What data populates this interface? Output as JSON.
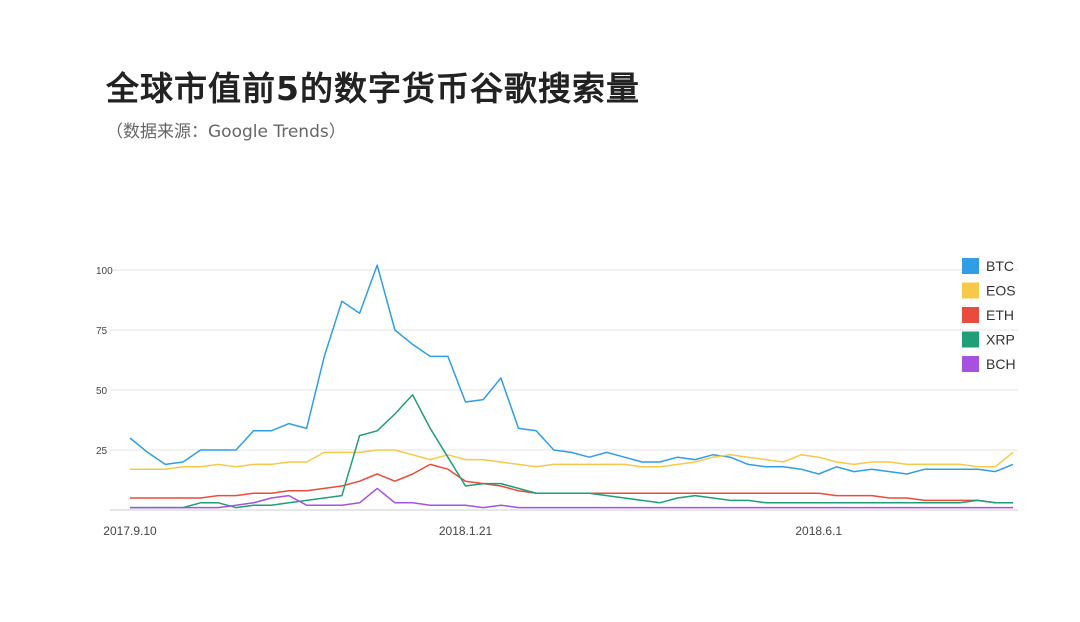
{
  "header": {
    "title": "全球市值前5的数字货币谷歌搜索量",
    "subtitle": "（数据来源：Google Trends）"
  },
  "chart_data": {
    "type": "line",
    "title": "全球市值前5的数字货币谷歌搜索量",
    "subtitle": "（数据来源：Google Trends）",
    "xlabel": "",
    "ylabel": "",
    "ylim": [
      0,
      100
    ],
    "yticks": [
      25,
      50,
      75,
      100
    ],
    "grid": true,
    "legend_position": "right",
    "x_tick_labels": [
      {
        "index": 0,
        "label": "2017.9.10"
      },
      {
        "index": 19,
        "label": "2018.1.21"
      },
      {
        "index": 39,
        "label": "2018.6.1"
      }
    ],
    "x_count": 51,
    "series": [
      {
        "name": "BTC",
        "color": "#2f9ee6",
        "values": [
          30,
          24,
          19,
          20,
          25,
          25,
          25,
          33,
          33,
          36,
          34,
          64,
          87,
          82,
          102,
          75,
          69,
          64,
          64,
          45,
          46,
          55,
          34,
          33,
          25,
          24,
          22,
          24,
          22,
          20,
          20,
          22,
          21,
          23,
          22,
          19,
          18,
          18,
          17,
          15,
          18,
          16,
          17,
          16,
          15,
          17,
          17,
          17,
          17,
          16,
          19
        ]
      },
      {
        "name": "EOS",
        "color": "#f7c948",
        "values": [
          17,
          17,
          17,
          18,
          18,
          19,
          18,
          19,
          19,
          20,
          20,
          24,
          24,
          24,
          25,
          25,
          23,
          21,
          23,
          21,
          21,
          20,
          19,
          18,
          19,
          19,
          19,
          19,
          19,
          18,
          18,
          19,
          20,
          22,
          23,
          22,
          21,
          20,
          23,
          22,
          20,
          19,
          20,
          20,
          19,
          19,
          19,
          19,
          18,
          18,
          24
        ]
      },
      {
        "name": "ETH",
        "color": "#e94b3c",
        "values": [
          5,
          5,
          5,
          5,
          5,
          6,
          6,
          7,
          7,
          8,
          8,
          9,
          10,
          12,
          15,
          12,
          15,
          19,
          17,
          12,
          11,
          10,
          8,
          7,
          7,
          7,
          7,
          7,
          7,
          7,
          7,
          7,
          7,
          7,
          7,
          7,
          7,
          7,
          7,
          7,
          6,
          6,
          6,
          5,
          5,
          4,
          4,
          4,
          4,
          3,
          3
        ]
      },
      {
        "name": "XRP",
        "color": "#1f9e78",
        "values": [
          1,
          1,
          1,
          1,
          3,
          3,
          1,
          2,
          2,
          3,
          4,
          5,
          6,
          31,
          33,
          40,
          48,
          34,
          22,
          10,
          11,
          11,
          9,
          7,
          7,
          7,
          7,
          6,
          5,
          4,
          3,
          5,
          6,
          5,
          4,
          4,
          3,
          3,
          3,
          3,
          3,
          3,
          3,
          3,
          3,
          3,
          3,
          3,
          4,
          3,
          3
        ]
      },
      {
        "name": "BCH",
        "color": "#a651e0",
        "values": [
          1,
          1,
          1,
          1,
          1,
          1,
          2,
          3,
          5,
          6,
          2,
          2,
          2,
          3,
          9,
          3,
          3,
          2,
          2,
          2,
          1,
          2,
          1,
          1,
          1,
          1,
          1,
          1,
          1,
          1,
          1,
          1,
          1,
          1,
          1,
          1,
          1,
          1,
          1,
          1,
          1,
          1,
          1,
          1,
          1,
          1,
          1,
          1,
          1,
          1,
          1
        ]
      }
    ]
  }
}
